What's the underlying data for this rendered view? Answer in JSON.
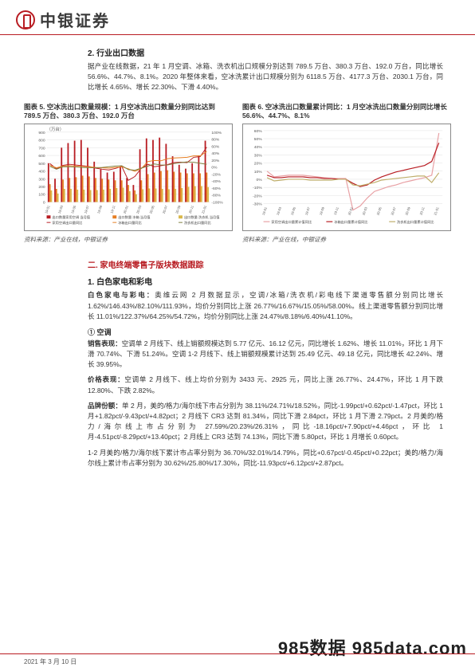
{
  "header": {
    "brand": "中银证券"
  },
  "section2": {
    "title": "2. 行业出口数据",
    "para": "据产业在线数据，21 年 1 月空调、冰箱、洗衣机出口规模分别达到 789.5 万台、380.3 万台、192.0 万台，同比增长 56.6%、44.7%、8.1%。2020 年整体来看，空冰洗累计出口规模分别为 6118.5 万台、4177.3 万台、2030.1 万台，同比增长 4.65%、增长 22.30%、下滑 4.40%。"
  },
  "chart5": {
    "title": "图表 5. 空冰洗出口数量规模：1 月空冰洗出口数量分别同比达到 789.5 万台、380.3 万台、192.0 万台",
    "source": "资料来源：产业在线，中银证券",
    "ylabel": "（万台）",
    "xlabels": [
      "19-01",
      "19-02",
      "19-03",
      "19-04",
      "19-05",
      "19-06",
      "19-07",
      "19-08",
      "19-09",
      "19-10",
      "19-11",
      "19-12",
      "20-01",
      "20-02",
      "20-03",
      "20-04",
      "20-05",
      "20-06",
      "20-07",
      "20-08",
      "20-09",
      "20-10",
      "20-11",
      "20-12",
      "21-01"
    ],
    "ylim": [
      0,
      900
    ],
    "ytick_step": 100,
    "ylim_right": [
      -100,
      100
    ],
    "ytick_step_right": 20,
    "bars": {
      "ac": [
        500,
        300,
        700,
        760,
        790,
        800,
        700,
        520,
        420,
        380,
        390,
        460,
        310,
        220,
        680,
        820,
        800,
        830,
        750,
        590,
        480,
        430,
        500,
        600,
        790
      ],
      "fridge": [
        230,
        170,
        290,
        310,
        320,
        340,
        330,
        310,
        300,
        290,
        280,
        280,
        220,
        150,
        280,
        360,
        380,
        400,
        410,
        390,
        380,
        370,
        370,
        370,
        380
      ],
      "washer": [
        150,
        110,
        170,
        170,
        160,
        160,
        155,
        155,
        160,
        170,
        180,
        185,
        140,
        100,
        165,
        175,
        175,
        170,
        165,
        170,
        180,
        195,
        205,
        205,
        192
      ]
    },
    "lines_right": {
      "ac_yoy": [
        10,
        -5,
        5,
        8,
        6,
        4,
        2,
        -3,
        -6,
        -8,
        -4,
        2,
        -38,
        -27,
        -3,
        8,
        1,
        4,
        7,
        13,
        14,
        13,
        28,
        30,
        57
      ],
      "fridge_yoy": [
        5,
        -2,
        3,
        4,
        3,
        2,
        1,
        -1,
        -2,
        -3,
        -1,
        1,
        -5,
        -12,
        -4,
        16,
        19,
        18,
        24,
        26,
        27,
        28,
        32,
        32,
        45
      ],
      "washer_yoy": [
        2,
        -6,
        1,
        1,
        0,
        -1,
        -2,
        -2,
        -1,
        1,
        3,
        4,
        -7,
        -9,
        -3,
        3,
        9,
        6,
        6,
        10,
        13,
        15,
        14,
        11,
        8
      ]
    },
    "colors": {
      "ac": "#b81c22",
      "fridge": "#e67e22",
      "washer": "#d9b84a",
      "ac_line": "#b81c22",
      "fridge_line": "#e67e22",
      "washer_line": "#7f7f3f",
      "grid": "#e0e0e0",
      "axis": "#666666"
    },
    "legend": [
      "出口数量家用空调 当月值",
      "出口数量 冰箱 当月值",
      "出口数量 洗衣机 当月值",
      "家用空调出口量同比",
      "冰箱出口量同比",
      "洗衣机出口量同比"
    ]
  },
  "chart6": {
    "title": "图表 6. 空冰洗出口数量累计同比：1 月空冰洗出口数量分别同比增长 56.6%、44.7%、8.1%",
    "source": "资料来源：产业在线，中银证券",
    "xlabels": [
      "19-01",
      "19-02",
      "19-03",
      "19-04",
      "19-05",
      "19-06",
      "19-07",
      "19-08",
      "19-09",
      "19-10",
      "19-11",
      "19-12",
      "20-01",
      "20-02",
      "20-03",
      "20-04",
      "20-05",
      "20-06",
      "20-07",
      "20-08",
      "20-09",
      "20-10",
      "20-11",
      "20-12",
      "21-01"
    ],
    "ylim": [
      -30,
      60
    ],
    "ytick_step": 10,
    "lines": {
      "ac": [
        10,
        3,
        4,
        5,
        5,
        5,
        4,
        3,
        2,
        1,
        1,
        1,
        -38,
        -33,
        -23,
        -15,
        -12,
        -9,
        -7,
        -4,
        -2,
        0,
        2,
        5,
        57
      ],
      "fridge": [
        5,
        2,
        2,
        3,
        3,
        3,
        2,
        2,
        1,
        1,
        0,
        0,
        -5,
        -9,
        -7,
        -1,
        3,
        6,
        9,
        11,
        13,
        15,
        17,
        22,
        45
      ],
      "washer": [
        2,
        -2,
        -1,
        0,
        0,
        0,
        -1,
        -1,
        -1,
        -1,
        0,
        0,
        -7,
        -8,
        -6,
        -4,
        -1,
        0,
        1,
        2,
        3,
        4,
        4,
        -4,
        8
      ]
    },
    "colors": {
      "ac": "#e8a0a4",
      "fridge": "#b81c22",
      "washer": "#bfae6a",
      "grid": "#e0e0e0",
      "axis": "#666666"
    },
    "legend": [
      "家用空调出口量累计值同比",
      "冰箱出口量累计值同比",
      "洗衣机出口量累计值同比"
    ]
  },
  "sectionII": {
    "title": "二. 家电终端零售子版块数据跟踪",
    "sub1_title": "1. 白色家电和彩电",
    "sub1_para": "白色家电与彩电：奥维云网 2 月数据显示，空调/冰箱/洗衣机/彩电线下渠道零售额分别同比增长 1.62%/146.43%/82.10%/111.93%，均价分别同比上涨 26.77%/16.67%/15.05%/58.00%。线上渠道零售额分别同比增长 11.01%/122.37%/64.25%/54.72%，均价分别同比上涨 24.47%/8.18%/6.40%/41.10%。",
    "ac_num": "① 空调",
    "ac_sales": "销售表现：空调单 2 月线下、线上销额规模达到 5.77 亿元、16.12 亿元，同比增长 1.62%、增长 11.01%，环比 1 月下滑 70.74%、下滑 51.24%。空调 1-2 月线下、线上销额规模累计达到 25.49 亿元、49.18 亿元，同比增长 42.24%、增长 39.95%。",
    "ac_price": "价格表现：空调单 2 月线下、线上均价分别为 3433 元、2925 元，同比上涨 26.77%、24.47%，环比 1 月下跌 12.80%、下跌 2.82%。",
    "ac_brand": "品牌份额：单 2 月，美的/格力/海尔线下市占分别为 38.11%/24.71%/18.52%，同比-1.99pct/+0.62pct/-1.47pct，环比 1 月+1.82pct/-9.43pct/+4.82pct；2 月线下 CR3 达到 81.34%，同比下滑 2.84pct，环比 1 月下滑 2.79pct。2 月美的/格力/海尔线上市占分别为 27.59%/20.23%/26.31%，同比-18.16pct/+7.90pct/+4.46pct，环比 1 月-4.51pct/-8.29pct/+13.40pct；2 月线上 CR3 达到 74.13%，同比下滑 5.80pct，环比 1 月增长 0.60pct。",
    "ac_brand2": "1-2 月美的/格力/海尔线下累计市占率分别为 36.70%/32.01%/14.79%，同比+0.67pct/-0.45pct/+0.22pct；美的/格力/海尔线上累计市占率分别为 30.62%/25.80%/17.30%，同比-11.93pct/+6.12pct/+2.87pct。"
  },
  "footer": {
    "date": "2021 年 3 月 10 日"
  },
  "watermark": "985数据 985data.com"
}
